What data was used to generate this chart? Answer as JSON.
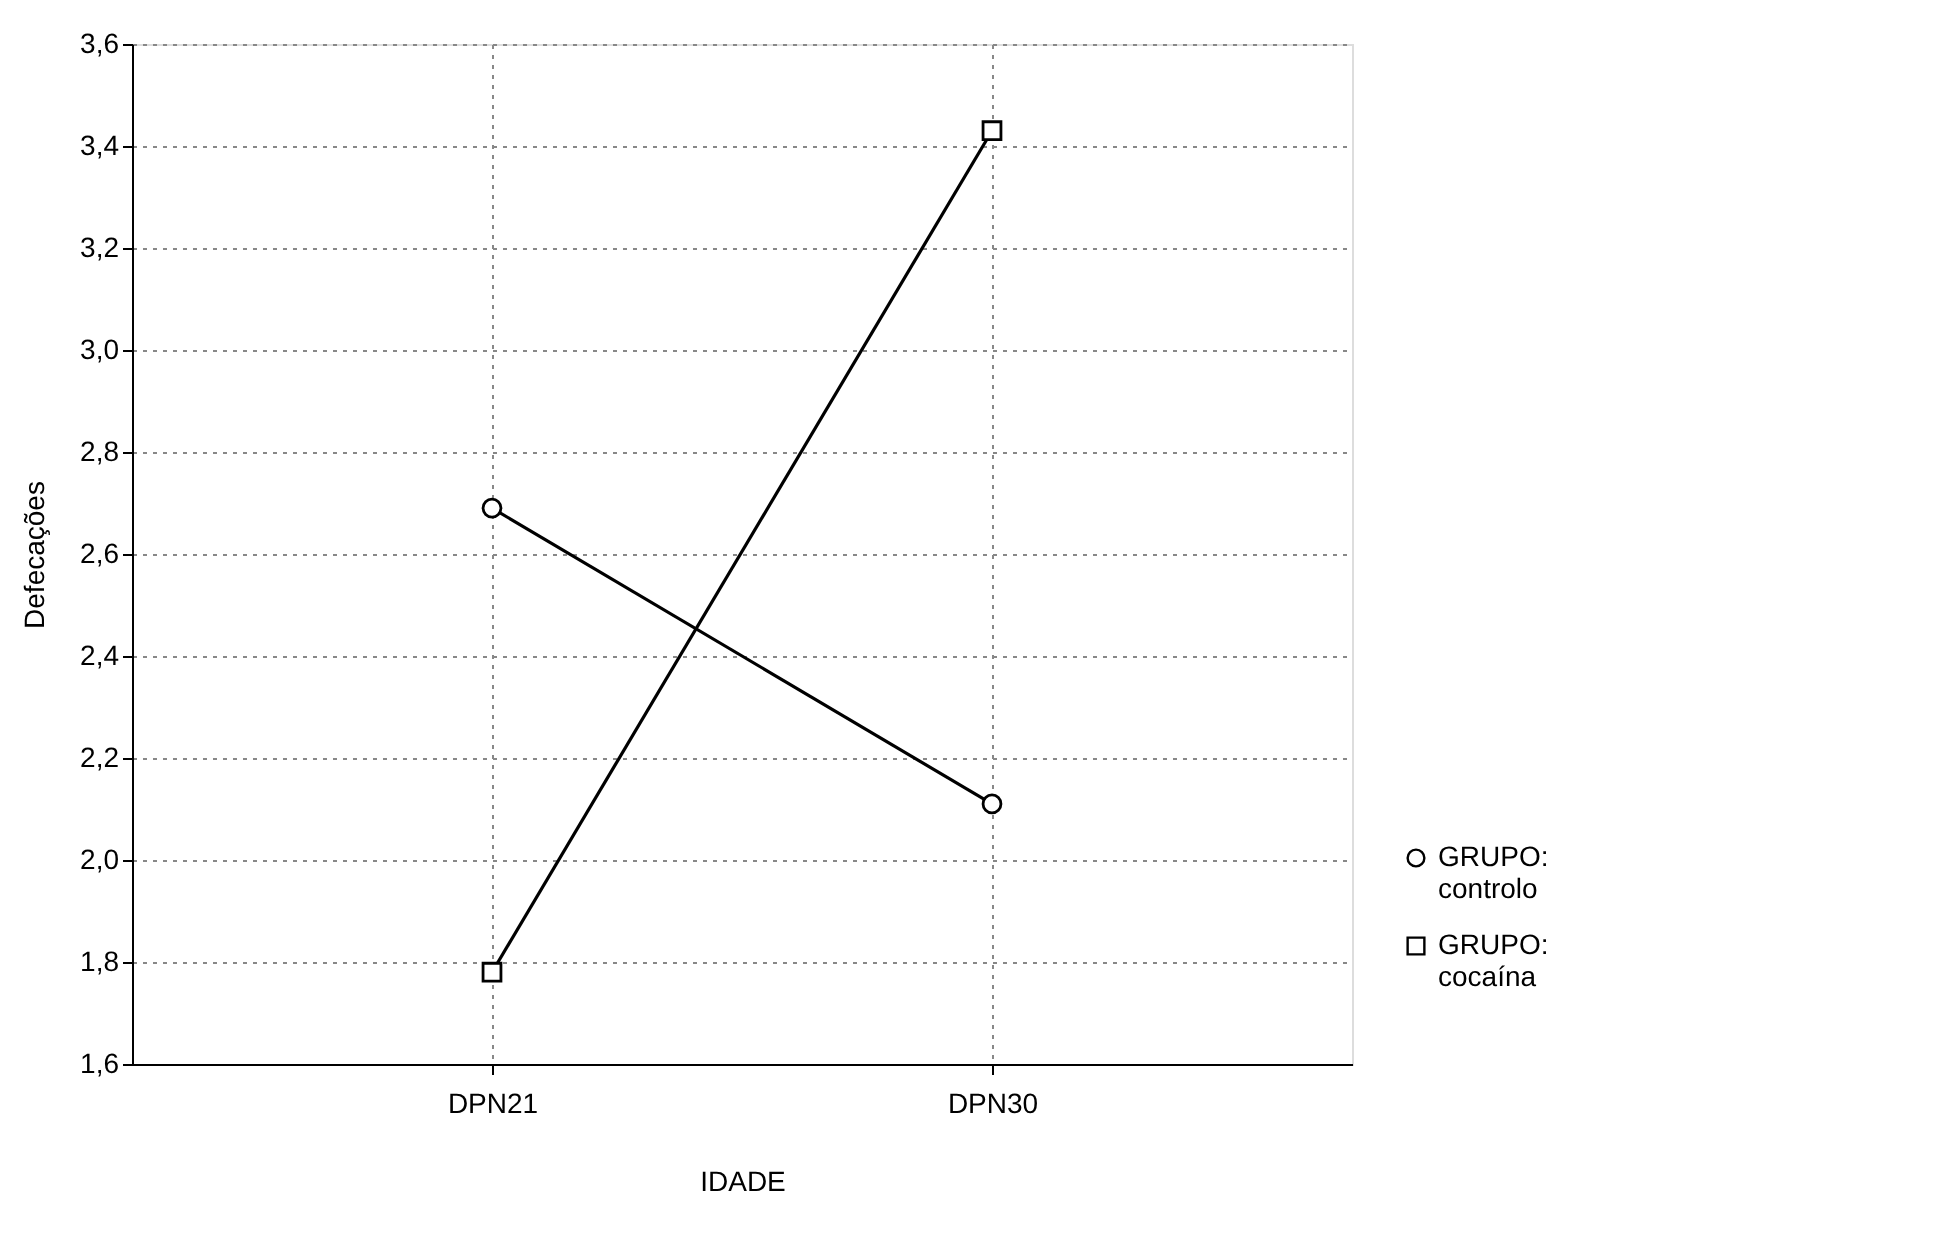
{
  "chart_data": {
    "type": "line",
    "xlabel": "IDADE",
    "ylabel": "Defecações",
    "categories": [
      "DPN21",
      "DPN30"
    ],
    "series": [
      {
        "name": "GRUPO: controlo",
        "color": "#000000",
        "marker": "circle",
        "values": [
          2.69,
          2.11
        ]
      },
      {
        "name": "GRUPO: cocaína",
        "color": "#000000",
        "marker": "square",
        "values": [
          1.78,
          3.43
        ]
      }
    ],
    "ylim": [
      1.6,
      3.6
    ],
    "yticks": [
      {
        "value": 1.6,
        "label": "1,6"
      },
      {
        "value": 1.8,
        "label": "1,8"
      },
      {
        "value": 2.0,
        "label": "2,0"
      },
      {
        "value": 2.2,
        "label": "2,2"
      },
      {
        "value": 2.4,
        "label": "2,4"
      },
      {
        "value": 2.6,
        "label": "2,6"
      },
      {
        "value": 2.8,
        "label": "2,8"
      },
      {
        "value": 3.0,
        "label": "3,0"
      },
      {
        "value": 3.2,
        "label": "3,2"
      },
      {
        "value": 3.4,
        "label": "3,4"
      },
      {
        "value": 3.6,
        "label": "3,6"
      }
    ],
    "grid": true,
    "legend": "bottom right",
    "line_style": "solid"
  }
}
